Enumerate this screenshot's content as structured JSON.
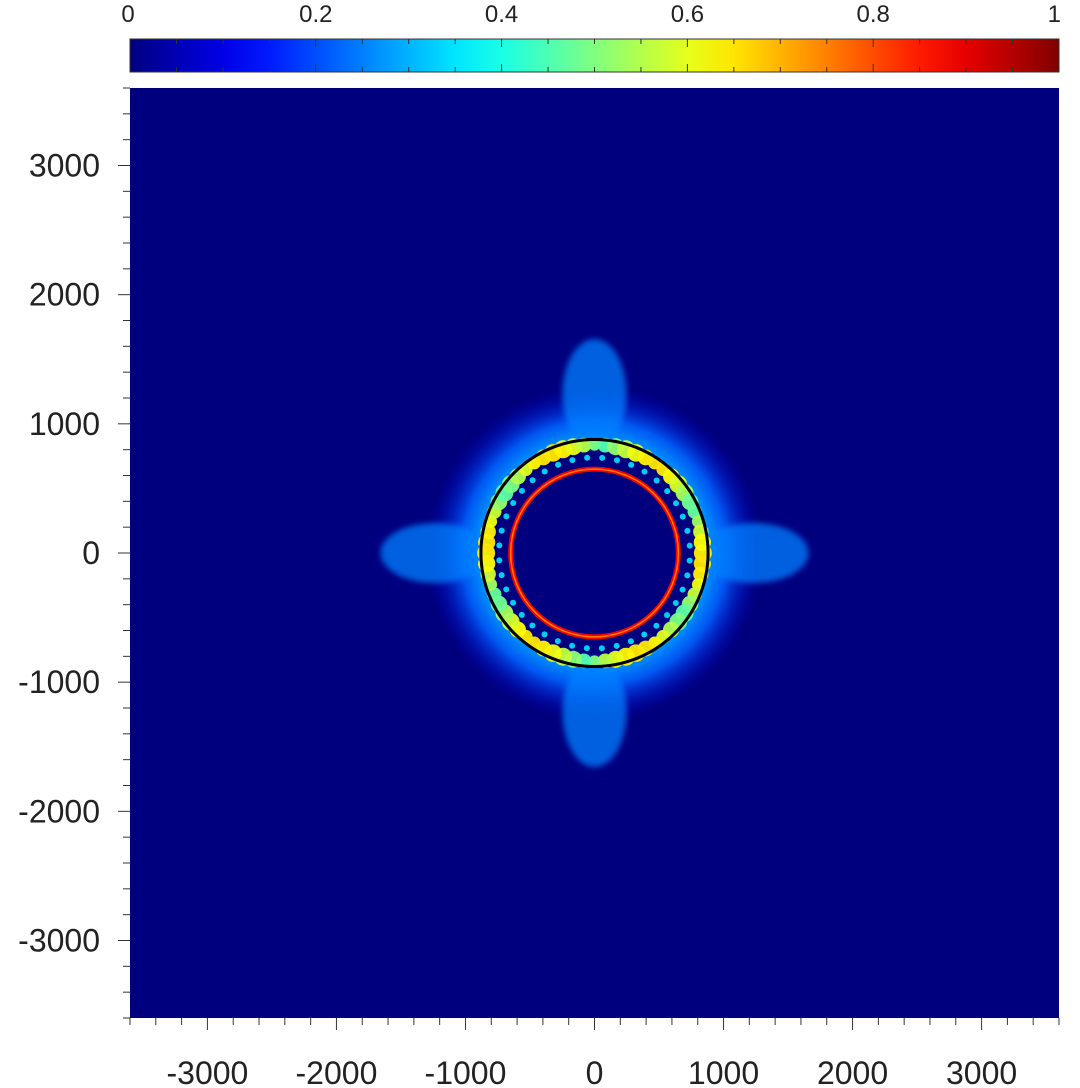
{
  "chart_data": {
    "type": "heatmap",
    "title": "",
    "xlabel": "",
    "ylabel": "",
    "xlim": [
      -3600,
      3600
    ],
    "ylim": [
      -3600,
      3600
    ],
    "x_ticks": [
      -3000,
      -2000,
      -1000,
      0,
      1000,
      2000,
      3000
    ],
    "x_tick_labels": [
      "-3000",
      "-2000",
      "-1000",
      "0",
      "1000",
      "2000",
      "3000"
    ],
    "y_ticks": [
      3000,
      2000,
      1000,
      0,
      -1000,
      -2000,
      -3000
    ],
    "y_tick_labels": [
      "3000",
      "2000",
      "1000",
      "0",
      "-1000",
      "-2000",
      "-3000"
    ],
    "minor_tick_step": 200,
    "grid": false,
    "colormap": "jet",
    "colorbar": {
      "placement": "top",
      "range": [
        0,
        1
      ],
      "ticks": [
        0,
        0.2,
        0.4,
        0.6,
        0.8,
        1
      ],
      "tick_labels": [
        "0",
        "0.2",
        "0.4",
        "0.6",
        "0.8",
        "1"
      ],
      "minor_tick_step": 0.05
    },
    "background_value": 0.0,
    "features": {
      "inner_ring": {
        "center": [
          0,
          0
        ],
        "radius": 650,
        "value": 0.88
      },
      "outer_halo": {
        "center": [
          0,
          0
        ],
        "inner_radius": 880,
        "outer_radius": 1300,
        "value": 0.22
      },
      "outer_circle_line": {
        "center": [
          0,
          0
        ],
        "radius": 880,
        "color": "#000000"
      },
      "spikes_along": [
        "x-axis",
        "y-axis"
      ]
    },
    "colors": {
      "background": "#00007f",
      "circle_line": "#000000"
    }
  }
}
